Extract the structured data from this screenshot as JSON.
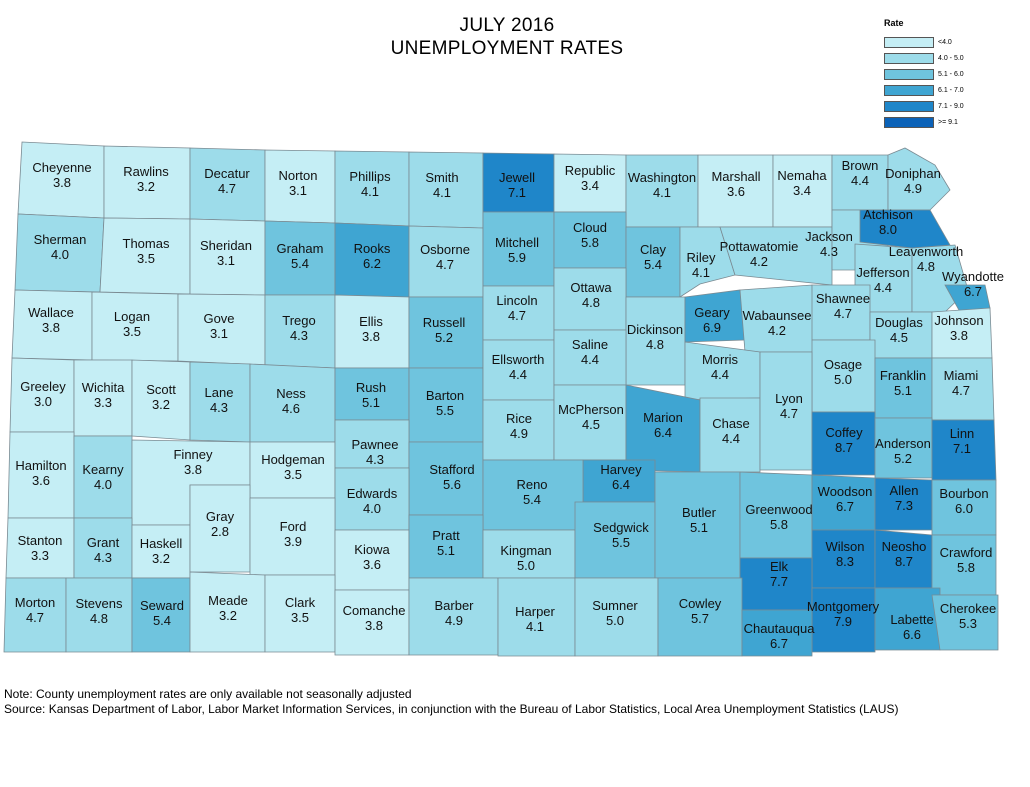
{
  "title": {
    "line1": "JULY 2016",
    "line2": "UNEMPLOYMENT RATES"
  },
  "legend": {
    "title": "Rate",
    "items": [
      {
        "label": "<4.0",
        "color": "#c5eef5"
      },
      {
        "label": "4.0 - 5.0",
        "color": "#9ddcea"
      },
      {
        "label": "5.1 - 6.0",
        "color": "#6fc4de"
      },
      {
        "label": "6.1 - 7.0",
        "color": "#3fa5d2"
      },
      {
        "label": "7.1 - 9.0",
        "color": "#1f86c9"
      },
      {
        "label": ">= 9.1",
        "color": "#0b62b8"
      }
    ]
  },
  "counties": [
    {
      "name": "Cheyenne",
      "rate": "3.8"
    },
    {
      "name": "Rawlins",
      "rate": "3.2"
    },
    {
      "name": "Decatur",
      "rate": "4.7"
    },
    {
      "name": "Norton",
      "rate": "3.1"
    },
    {
      "name": "Phillips",
      "rate": "4.1"
    },
    {
      "name": "Smith",
      "rate": "4.1"
    },
    {
      "name": "Jewell",
      "rate": "7.1"
    },
    {
      "name": "Republic",
      "rate": "3.4"
    },
    {
      "name": "Washington",
      "rate": "4.1"
    },
    {
      "name": "Marshall",
      "rate": "3.6"
    },
    {
      "name": "Nemaha",
      "rate": "3.4"
    },
    {
      "name": "Brown",
      "rate": "4.4"
    },
    {
      "name": "Doniphan",
      "rate": "4.9"
    },
    {
      "name": "Sherman",
      "rate": "4.0"
    },
    {
      "name": "Thomas",
      "rate": "3.5"
    },
    {
      "name": "Sheridan",
      "rate": "3.1"
    },
    {
      "name": "Graham",
      "rate": "5.4"
    },
    {
      "name": "Rooks",
      "rate": "6.2"
    },
    {
      "name": "Osborne",
      "rate": "4.7"
    },
    {
      "name": "Mitchell",
      "rate": "5.9"
    },
    {
      "name": "Cloud",
      "rate": "5.8"
    },
    {
      "name": "Clay",
      "rate": "5.4"
    },
    {
      "name": "Riley",
      "rate": "4.1"
    },
    {
      "name": "Pottawatomie",
      "rate": "4.2"
    },
    {
      "name": "Jackson",
      "rate": "4.3"
    },
    {
      "name": "Atchison",
      "rate": "8.0"
    },
    {
      "name": "Jefferson",
      "rate": "4.4"
    },
    {
      "name": "Leavenworth",
      "rate": "4.8"
    },
    {
      "name": "Wyandotte",
      "rate": "6.7"
    },
    {
      "name": "Wallace",
      "rate": "3.8"
    },
    {
      "name": "Logan",
      "rate": "3.5"
    },
    {
      "name": "Gove",
      "rate": "3.1"
    },
    {
      "name": "Trego",
      "rate": "4.3"
    },
    {
      "name": "Ellis",
      "rate": "3.8"
    },
    {
      "name": "Russell",
      "rate": "5.2"
    },
    {
      "name": "Lincoln",
      "rate": "4.7"
    },
    {
      "name": "Ottawa",
      "rate": "4.8"
    },
    {
      "name": "Dickinson",
      "rate": "4.8"
    },
    {
      "name": "Geary",
      "rate": "6.9"
    },
    {
      "name": "Wabaunsee",
      "rate": "4.2"
    },
    {
      "name": "Shawnee",
      "rate": "4.7"
    },
    {
      "name": "Douglas",
      "rate": "4.5"
    },
    {
      "name": "Johnson",
      "rate": "3.8"
    },
    {
      "name": "Greeley",
      "rate": "3.0"
    },
    {
      "name": "Wichita",
      "rate": "3.3"
    },
    {
      "name": "Scott",
      "rate": "3.2"
    },
    {
      "name": "Lane",
      "rate": "4.3"
    },
    {
      "name": "Ness",
      "rate": "4.6"
    },
    {
      "name": "Rush",
      "rate": "5.1"
    },
    {
      "name": "Barton",
      "rate": "5.5"
    },
    {
      "name": "Ellsworth",
      "rate": "4.4"
    },
    {
      "name": "Saline",
      "rate": "4.4"
    },
    {
      "name": "Morris",
      "rate": "4.4"
    },
    {
      "name": "Osage",
      "rate": "5.0"
    },
    {
      "name": "Franklin",
      "rate": "5.1"
    },
    {
      "name": "Miami",
      "rate": "4.7"
    },
    {
      "name": "Hamilton",
      "rate": "3.6"
    },
    {
      "name": "Kearny",
      "rate": "4.0"
    },
    {
      "name": "Finney",
      "rate": "3.8"
    },
    {
      "name": "Hodgeman",
      "rate": "3.5"
    },
    {
      "name": "Pawnee",
      "rate": "4.3"
    },
    {
      "name": "Stafford",
      "rate": "5.6"
    },
    {
      "name": "Rice",
      "rate": "4.9"
    },
    {
      "name": "McPherson",
      "rate": "4.5"
    },
    {
      "name": "Marion",
      "rate": "6.4"
    },
    {
      "name": "Chase",
      "rate": "4.4"
    },
    {
      "name": "Lyon",
      "rate": "4.7"
    },
    {
      "name": "Coffey",
      "rate": "8.7"
    },
    {
      "name": "Anderson",
      "rate": "5.2"
    },
    {
      "name": "Linn",
      "rate": "7.1"
    },
    {
      "name": "Edwards",
      "rate": "4.0"
    },
    {
      "name": "Harvey",
      "rate": "6.4"
    },
    {
      "name": "Reno",
      "rate": "5.4"
    },
    {
      "name": "Stanton",
      "rate": "3.3"
    },
    {
      "name": "Grant",
      "rate": "4.3"
    },
    {
      "name": "Haskell",
      "rate": "3.2"
    },
    {
      "name": "Gray",
      "rate": "2.8"
    },
    {
      "name": "Ford",
      "rate": "3.9"
    },
    {
      "name": "Kiowa",
      "rate": "3.6"
    },
    {
      "name": "Pratt",
      "rate": "5.1"
    },
    {
      "name": "Kingman",
      "rate": "5.0"
    },
    {
      "name": "Sedgwick",
      "rate": "5.5"
    },
    {
      "name": "Butler",
      "rate": "5.1"
    },
    {
      "name": "Greenwood",
      "rate": "5.8"
    },
    {
      "name": "Woodson",
      "rate": "6.7"
    },
    {
      "name": "Allen",
      "rate": "7.3"
    },
    {
      "name": "Bourbon",
      "rate": "6.0"
    },
    {
      "name": "Wilson",
      "rate": "8.3"
    },
    {
      "name": "Neosho",
      "rate": "8.7"
    },
    {
      "name": "Crawford",
      "rate": "5.8"
    },
    {
      "name": "Elk",
      "rate": "7.7"
    },
    {
      "name": "Morton",
      "rate": "4.7"
    },
    {
      "name": "Stevens",
      "rate": "4.8"
    },
    {
      "name": "Seward",
      "rate": "5.4"
    },
    {
      "name": "Meade",
      "rate": "3.2"
    },
    {
      "name": "Clark",
      "rate": "3.5"
    },
    {
      "name": "Comanche",
      "rate": "3.8"
    },
    {
      "name": "Barber",
      "rate": "4.9"
    },
    {
      "name": "Harper",
      "rate": "4.1"
    },
    {
      "name": "Sumner",
      "rate": "5.0"
    },
    {
      "name": "Cowley",
      "rate": "5.7"
    },
    {
      "name": "Montgomery",
      "rate": "7.9"
    },
    {
      "name": "Labette",
      "rate": "6.6"
    },
    {
      "name": "Cherokee",
      "rate": "5.3"
    },
    {
      "name": "Chautauqua",
      "rate": "6.7"
    }
  ],
  "notes": {
    "line1": "Note: County unemployment rates are only available not seasonally adjusted",
    "line2": "Source: Kansas Department of Labor, Labor Market Information Services, in conjunction with the Bureau of Labor Statistics, Local Area Unemployment Statistics (LAUS)"
  }
}
